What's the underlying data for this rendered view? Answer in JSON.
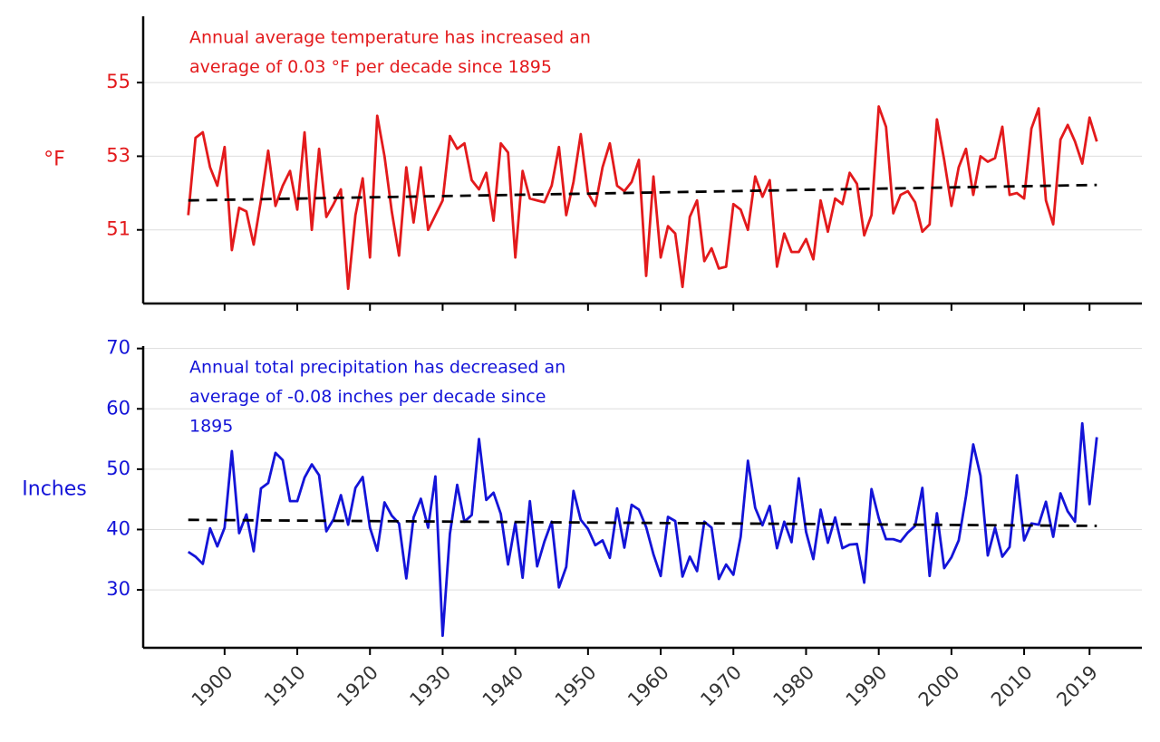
{
  "chart_data": [
    {
      "type": "line",
      "ylabel": "°F",
      "color": "#e31a1c",
      "annotation": [
        "Annual average temperature has increased an",
        "average of 0.03 °F per decade since 1895"
      ],
      "x": [
        1895,
        1896,
        1897,
        1898,
        1899,
        1900,
        1901,
        1902,
        1903,
        1904,
        1905,
        1906,
        1907,
        1908,
        1909,
        1910,
        1911,
        1912,
        1913,
        1914,
        1915,
        1916,
        1917,
        1918,
        1919,
        1920,
        1921,
        1922,
        1923,
        1924,
        1925,
        1926,
        1927,
        1928,
        1929,
        1930,
        1931,
        1932,
        1933,
        1934,
        1935,
        1936,
        1937,
        1938,
        1939,
        1940,
        1941,
        1942,
        1943,
        1944,
        1945,
        1946,
        1947,
        1948,
        1949,
        1950,
        1951,
        1952,
        1953,
        1954,
        1955,
        1956,
        1957,
        1958,
        1959,
        1960,
        1961,
        1962,
        1963,
        1964,
        1965,
        1966,
        1967,
        1968,
        1969,
        1970,
        1971,
        1972,
        1973,
        1974,
        1975,
        1976,
        1977,
        1978,
        1979,
        1980,
        1981,
        1982,
        1983,
        1984,
        1985,
        1986,
        1987,
        1988,
        1989,
        1990,
        1991,
        1992,
        1993,
        1994,
        1995,
        1996,
        1997,
        1998,
        1999,
        2000,
        2001,
        2002,
        2003,
        2004,
        2005,
        2006,
        2007,
        2008,
        2009,
        2010,
        2011,
        2012,
        2013,
        2014,
        2015,
        2016,
        2017,
        2018,
        2019,
        2020
      ],
      "values": [
        51.4,
        53.5,
        53.65,
        52.7,
        52.2,
        53.25,
        50.45,
        51.6,
        51.5,
        50.6,
        51.8,
        53.15,
        51.65,
        52.2,
        52.6,
        51.55,
        53.65,
        51.0,
        53.2,
        51.35,
        51.7,
        52.1,
        49.4,
        51.4,
        52.4,
        50.25,
        54.1,
        53.0,
        51.5,
        50.3,
        52.7,
        51.2,
        52.7,
        51.0,
        51.4,
        51.8,
        53.55,
        53.2,
        53.35,
        52.35,
        52.1,
        52.55,
        51.25,
        53.35,
        53.1,
        50.25,
        52.6,
        51.85,
        51.8,
        51.75,
        52.2,
        53.25,
        51.4,
        52.3,
        53.6,
        52.0,
        51.65,
        52.7,
        53.35,
        52.2,
        52.05,
        52.3,
        52.9,
        49.75,
        52.45,
        50.25,
        51.1,
        50.9,
        49.45,
        51.35,
        51.8,
        50.15,
        50.5,
        49.95,
        50.0,
        51.7,
        51.55,
        51.0,
        52.45,
        51.9,
        52.35,
        50.0,
        50.9,
        50.4,
        50.4,
        50.75,
        50.2,
        51.8,
        50.95,
        51.85,
        51.7,
        52.55,
        52.25,
        50.85,
        51.4,
        54.35,
        53.8,
        51.45,
        51.95,
        52.05,
        51.75,
        50.95,
        51.15,
        54.0,
        52.9,
        51.65,
        52.7,
        53.2,
        51.95,
        53.0,
        52.85,
        52.95,
        53.8,
        51.95,
        52.0,
        51.85,
        53.75,
        54.3,
        51.8,
        51.15,
        53.45,
        53.85,
        53.4,
        52.8,
        54.05,
        53.4
      ],
      "trend": {
        "x": [
          1895,
          2020
        ],
        "values": [
          51.8,
          52.22
        ],
        "color": "#000000"
      },
      "ylim": [
        49.0,
        56.8
      ],
      "yticks": [
        51,
        53,
        55
      ],
      "grid": true
    },
    {
      "type": "line",
      "ylabel": "Inches",
      "color": "#1414d8",
      "annotation": [
        "Annual total precipitation has decreased an",
        "average of -0.08 inches per decade since",
        "1895"
      ],
      "x": [
        1895,
        1896,
        1897,
        1898,
        1899,
        1900,
        1901,
        1902,
        1903,
        1904,
        1905,
        1906,
        1907,
        1908,
        1909,
        1910,
        1911,
        1912,
        1913,
        1914,
        1915,
        1916,
        1917,
        1918,
        1919,
        1920,
        1921,
        1922,
        1923,
        1924,
        1925,
        1926,
        1927,
        1928,
        1929,
        1930,
        1931,
        1932,
        1933,
        1934,
        1935,
        1936,
        1937,
        1938,
        1939,
        1940,
        1941,
        1942,
        1943,
        1944,
        1945,
        1946,
        1947,
        1948,
        1949,
        1950,
        1951,
        1952,
        1953,
        1954,
        1955,
        1956,
        1957,
        1958,
        1959,
        1960,
        1961,
        1962,
        1963,
        1964,
        1965,
        1966,
        1967,
        1968,
        1969,
        1970,
        1971,
        1972,
        1973,
        1974,
        1975,
        1976,
        1977,
        1978,
        1979,
        1980,
        1981,
        1982,
        1983,
        1984,
        1985,
        1986,
        1987,
        1988,
        1989,
        1990,
        1991,
        1992,
        1993,
        1994,
        1995,
        1996,
        1997,
        1998,
        1999,
        2000,
        2001,
        2002,
        2003,
        2004,
        2005,
        2006,
        2007,
        2008,
        2009,
        2010,
        2011,
        2012,
        2013,
        2014,
        2015,
        2016,
        2017,
        2018,
        2019,
        2020
      ],
      "values": [
        36.3,
        35.5,
        34.3,
        40.2,
        37.2,
        40.3,
        53.0,
        39.4,
        42.5,
        36.4,
        46.8,
        47.7,
        52.7,
        51.5,
        44.7,
        44.7,
        48.6,
        50.8,
        49.0,
        39.7,
        41.7,
        45.7,
        40.8,
        46.9,
        48.7,
        40.3,
        36.5,
        44.5,
        42.3,
        41.0,
        31.9,
        42.0,
        45.1,
        40.3,
        48.8,
        22.4,
        39.3,
        47.4,
        41.3,
        42.4,
        55.0,
        44.9,
        46.1,
        42.6,
        34.2,
        41.1,
        32.0,
        44.7,
        33.9,
        38.0,
        41.3,
        30.4,
        33.8,
        46.4,
        41.6,
        40.1,
        37.4,
        38.2,
        35.3,
        43.5,
        37.0,
        44.1,
        43.3,
        40.4,
        35.9,
        32.3,
        42.1,
        41.4,
        32.2,
        35.5,
        33.1,
        41.3,
        40.3,
        31.8,
        34.2,
        32.5,
        38.8,
        51.4,
        43.6,
        40.7,
        43.9,
        36.9,
        41.3,
        37.9,
        48.5,
        39.6,
        35.1,
        43.3,
        37.8,
        42.0,
        36.9,
        37.5,
        37.6,
        31.2,
        46.7,
        41.9,
        38.4,
        38.4,
        38.0,
        39.5,
        40.6,
        46.9,
        32.3,
        42.7,
        33.6,
        35.4,
        38.2,
        45.5,
        54.1,
        48.9,
        35.7,
        40.3,
        35.5,
        37.1,
        49.0,
        38.2,
        41.0,
        40.8,
        44.6,
        38.8,
        46.0,
        43.0,
        41.3,
        57.6,
        44.2,
        55.3
      ],
      "trend": {
        "x": [
          1895,
          2020
        ],
        "values": [
          41.6,
          40.6
        ],
        "color": "#000000"
      },
      "ylim": [
        20.4,
        70.4
      ],
      "yticks": [
        30,
        40,
        50,
        60,
        70
      ],
      "grid": true,
      "xlim": [
        1888.8,
        2026.2
      ],
      "xticks": [
        1900,
        1910,
        1920,
        1930,
        1940,
        1950,
        1960,
        1970,
        1980,
        1990,
        2000,
        2010,
        2019
      ]
    }
  ]
}
